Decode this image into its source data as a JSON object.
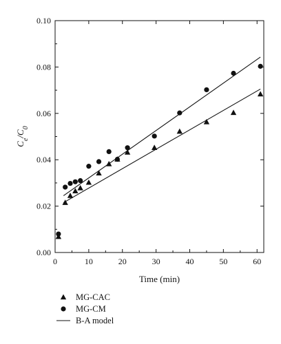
{
  "chart_data": {
    "type": "scatter",
    "xlabel": "Time (min)",
    "ylabel": "C_e/C_0",
    "xlim": [
      0,
      62
    ],
    "ylim": [
      0,
      0.1
    ],
    "x_ticks": [
      0,
      10,
      20,
      30,
      40,
      50,
      60
    ],
    "x_tick_labels": [
      "0",
      "10",
      "20",
      "30",
      "40",
      "50",
      "60"
    ],
    "y_ticks": [
      0,
      0.02,
      0.04,
      0.06,
      0.08,
      0.1
    ],
    "y_tick_labels": [
      "0.00",
      "0.02",
      "0.04",
      "0.06",
      "0.08",
      "0.10"
    ],
    "grid": false,
    "legend_position": "below-left",
    "series": [
      {
        "name": "MG-CAC",
        "marker": "triangle",
        "x": [
          1,
          3,
          4.5,
          6,
          7.5,
          10,
          13,
          16,
          18.5,
          21.5,
          29.5,
          37,
          45,
          53,
          61
        ],
        "y": [
          0.0068,
          0.0215,
          0.0245,
          0.0265,
          0.0278,
          0.0302,
          0.0342,
          0.0382,
          0.0402,
          0.0432,
          0.0452,
          0.0522,
          0.0563,
          0.0603,
          0.0683
        ]
      },
      {
        "name": "MG-CM",
        "marker": "circle",
        "x": [
          1,
          3,
          4.5,
          6,
          7.5,
          10,
          13,
          16,
          18.5,
          21.5,
          29.5,
          37,
          45,
          53,
          61
        ],
        "y": [
          0.008,
          0.0282,
          0.0298,
          0.0305,
          0.031,
          0.0372,
          0.0392,
          0.0435,
          0.0402,
          0.0452,
          0.0502,
          0.0602,
          0.0702,
          0.0773,
          0.0803
        ]
      }
    ],
    "model_lines": [
      {
        "name": "B-A model",
        "for_series": "MG-CAC",
        "x": [
          2.5,
          61
        ],
        "y": [
          0.0215,
          0.0705
        ]
      },
      {
        "name": "B-A model",
        "for_series": "MG-CM",
        "x": [
          2.5,
          61
        ],
        "y": [
          0.0245,
          0.0843
        ]
      }
    ],
    "legend": [
      {
        "label": "MG-CAC",
        "marker": "triangle"
      },
      {
        "label": "MG-CM",
        "marker": "circle"
      },
      {
        "label": "B-A model",
        "marker": "line"
      }
    ]
  }
}
